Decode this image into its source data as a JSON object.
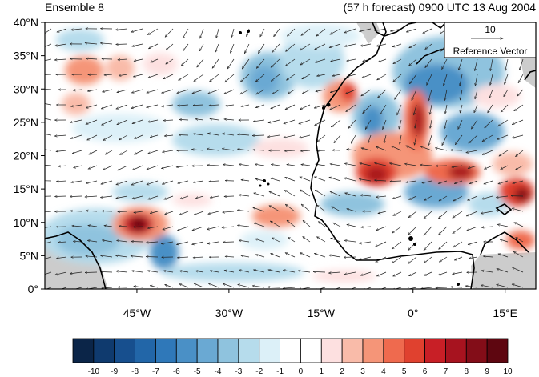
{
  "header": {
    "left": "Ensemble 8",
    "right": "(57 h forecast) 0900 UTC 13 Aug 2004"
  },
  "map": {
    "extent": {
      "lon": [
        -60,
        20
      ],
      "lat": [
        0,
        40
      ]
    },
    "lat_ticks": [
      {
        "value": 40,
        "label": "40°N"
      },
      {
        "value": 35,
        "label": "35°N"
      },
      {
        "value": 30,
        "label": "30°N"
      },
      {
        "value": 25,
        "label": "25°N"
      },
      {
        "value": 20,
        "label": "20°N"
      },
      {
        "value": 15,
        "label": "15°N"
      },
      {
        "value": 10,
        "label": "10°N"
      },
      {
        "value": 5,
        "label": "5°N"
      },
      {
        "value": 0,
        "label": "0°"
      }
    ],
    "lon_ticks": [
      {
        "value": -45,
        "label": "45°W"
      },
      {
        "value": -30,
        "label": "30°W"
      },
      {
        "value": -15,
        "label": "15°W"
      },
      {
        "value": 0,
        "label": "0°"
      },
      {
        "value": 15,
        "label": "15°E"
      }
    ],
    "reference_vector": {
      "magnitude": "10",
      "label": "Reference Vector"
    },
    "land_color": "#cccccc"
  },
  "colorbar": {
    "labels": [
      "-10",
      "-9",
      "-8",
      "-7",
      "-6",
      "-5",
      "-4",
      "-3",
      "-2",
      "-1",
      "0",
      "1",
      "2",
      "3",
      "4",
      "5",
      "6",
      "7",
      "8",
      "9",
      "10"
    ],
    "colors": [
      "#0b2548",
      "#0f3a6e",
      "#174f8e",
      "#2266a8",
      "#2f78b9",
      "#4a90c6",
      "#6aa9d3",
      "#8fc3de",
      "#b6dcec",
      "#dcf0f8",
      "#ffffff",
      "#ffffff",
      "#fde0e0",
      "#f9bba9",
      "#f59578",
      "#ef6a4e",
      "#e0412f",
      "#c81f26",
      "#a7131f",
      "#830d18",
      "#5e0610"
    ]
  }
}
